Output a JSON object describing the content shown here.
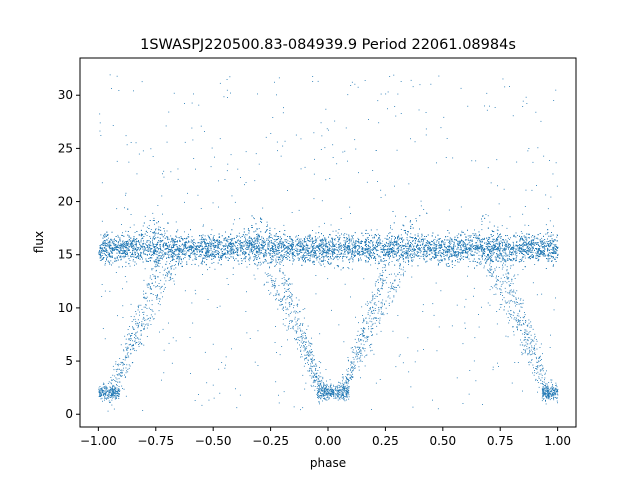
{
  "chart_data": {
    "type": "scatter",
    "title": "1SWASPJ220500.83-084939.9 Period 22061.08984s",
    "xlabel": "phase",
    "ylabel": "flux",
    "xlim": [
      -1.08,
      1.08
    ],
    "ylim": [
      -1.2,
      33.5
    ],
    "xticks": [
      -1.0,
      -0.75,
      -0.5,
      -0.25,
      0.0,
      0.25,
      0.5,
      0.75,
      1.0
    ],
    "xtick_labels": [
      "−1.00",
      "−0.75",
      "−0.50",
      "−0.25",
      "0.00",
      "0.25",
      "0.50",
      "0.75",
      "1.00"
    ],
    "yticks": [
      0,
      5,
      10,
      15,
      20,
      25,
      30
    ],
    "ytick_labels": [
      "0",
      "5",
      "10",
      "15",
      "20",
      "25",
      "30"
    ],
    "grid": false,
    "series": [
      {
        "color": "#1f77b4",
        "description_points": {
          "baseline_flux_mean": 15.6,
          "baseline_flux_spread": 1.2,
          "phase_range": [
            -1.0,
            1.0
          ],
          "eclipse_minima_phase": [
            -0.98,
            0.02,
            1.0
          ],
          "eclipse_minimum_flux": 2.1,
          "bright_excursions_phase": [
            -0.75,
            -0.3,
            0.35,
            0.7
          ],
          "bright_excursion_flux": 18.5,
          "outlier_max_flux": 32
        }
      }
    ]
  }
}
